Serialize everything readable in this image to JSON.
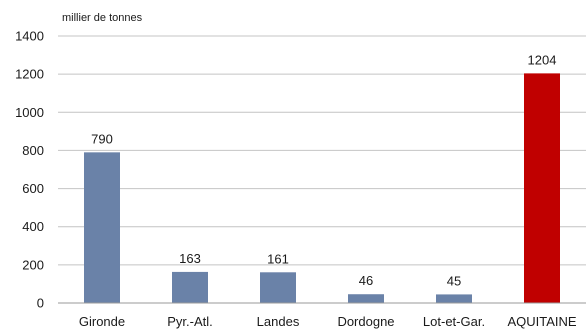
{
  "chart_data": {
    "type": "bar",
    "ylabel": "millier de tonnes",
    "ylim": [
      0,
      1400
    ],
    "yticks": [
      0,
      200,
      400,
      600,
      800,
      1000,
      1200,
      1400
    ],
    "grid": true,
    "categories": [
      "Gironde",
      "Pyr.-Atl.",
      "Landes",
      "Dordogne",
      "Lot-et-Gar.",
      "AQUITAINE"
    ],
    "values": [
      790,
      163,
      161,
      46,
      45,
      1204
    ],
    "value_labels": [
      "790",
      "163",
      "161",
      "46",
      "45",
      "1204"
    ],
    "colors": [
      "#6a82a8",
      "#6a82a8",
      "#6a82a8",
      "#6a82a8",
      "#6a82a8",
      "#c00000"
    ]
  }
}
